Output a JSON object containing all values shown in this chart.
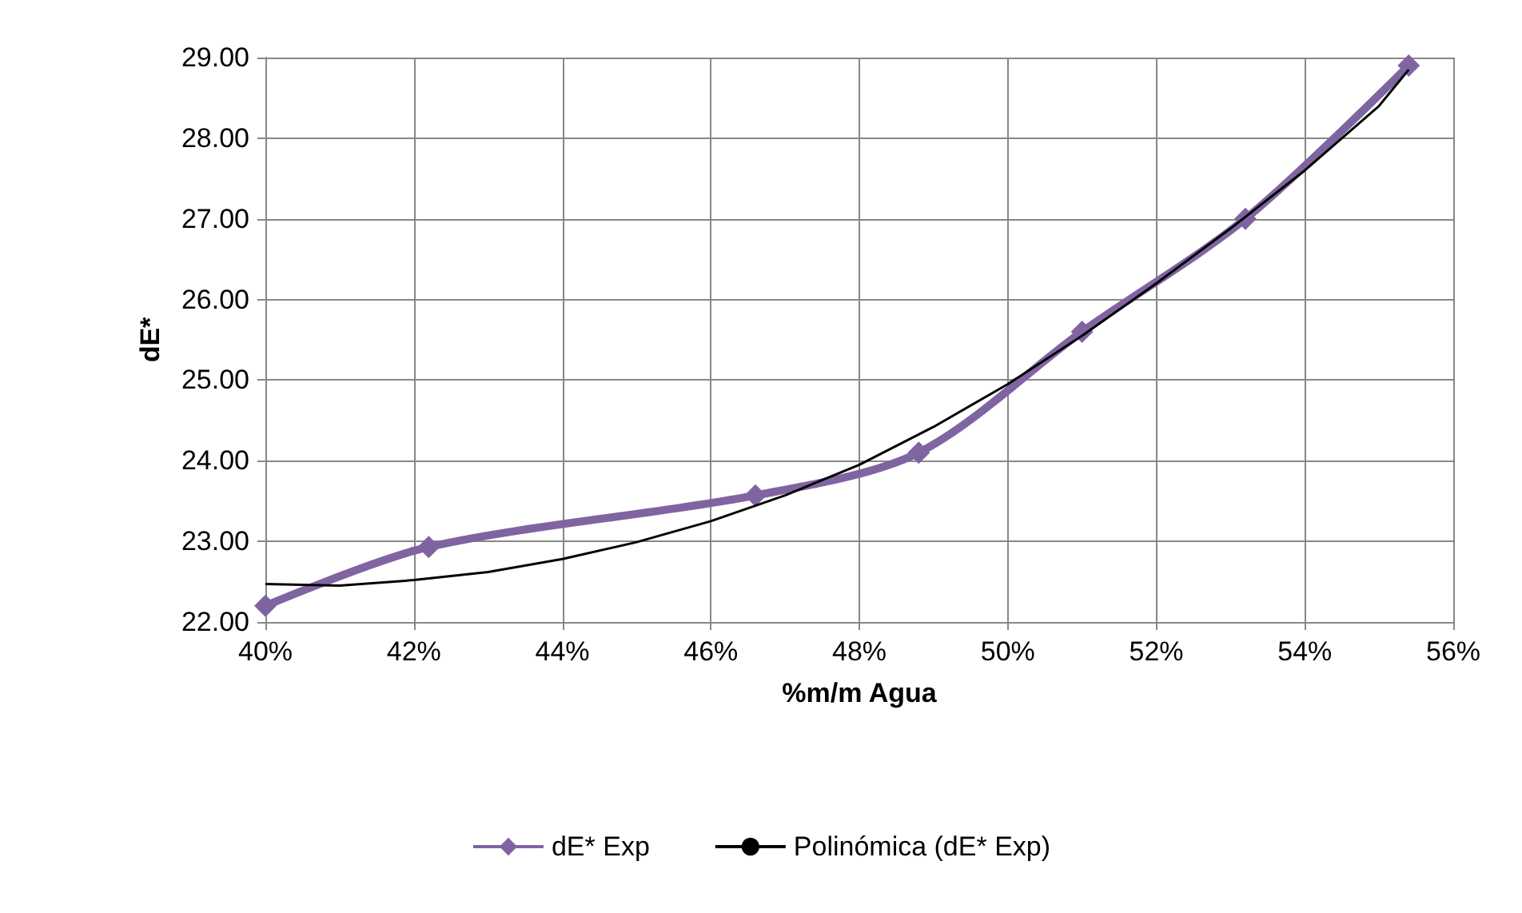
{
  "chart_data": {
    "type": "line",
    "xlabel": "%m/m Agua",
    "ylabel": "dE*",
    "xlim": [
      40,
      56
    ],
    "xticks": [
      {
        "value": 40,
        "label": "40%"
      },
      {
        "value": 42,
        "label": "42%"
      },
      {
        "value": 44,
        "label": "44%"
      },
      {
        "value": 46,
        "label": "46%"
      },
      {
        "value": 48,
        "label": "48%"
      },
      {
        "value": 50,
        "label": "50%"
      },
      {
        "value": 52,
        "label": "52%"
      },
      {
        "value": 54,
        "label": "54%"
      },
      {
        "value": 56,
        "label": "56%"
      }
    ],
    "ylim": [
      22,
      29
    ],
    "yticks": [
      {
        "value": 22,
        "label": "22.00"
      },
      {
        "value": 23,
        "label": "23.00"
      },
      {
        "value": 24,
        "label": "24.00"
      },
      {
        "value": 25,
        "label": "25.00"
      },
      {
        "value": 26,
        "label": "26.00"
      },
      {
        "value": 27,
        "label": "27.00"
      },
      {
        "value": 28,
        "label": "28.00"
      },
      {
        "value": 29,
        "label": "29.00"
      }
    ],
    "grid": true,
    "legend": "bottom",
    "series": [
      {
        "name": "dE* Exp",
        "color": "#8064a2",
        "marker": "diamond",
        "x": [
          40,
          42.2,
          46.6,
          48.8,
          51.0,
          53.2,
          55.4
        ],
        "values": [
          22.2,
          22.93,
          23.57,
          24.1,
          25.6,
          27.0,
          28.9
        ]
      },
      {
        "name": "Polinómica (dE* Exp)",
        "color": "#000000",
        "marker": "none",
        "x": [
          40,
          41,
          42,
          43,
          44,
          45,
          46,
          47,
          48,
          49,
          50,
          51,
          52,
          53,
          54,
          55,
          55.4
        ],
        "values": [
          22.47,
          22.45,
          22.52,
          22.62,
          22.78,
          22.99,
          23.25,
          23.57,
          23.95,
          24.42,
          24.95,
          25.55,
          26.2,
          26.88,
          27.6,
          28.4,
          28.85
        ]
      }
    ]
  }
}
